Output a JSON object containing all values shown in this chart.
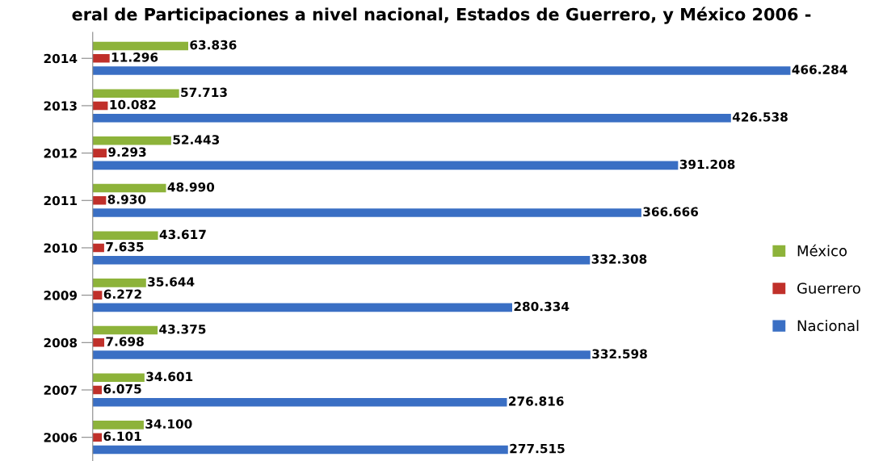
{
  "chart_data": {
    "type": "bar",
    "orientation": "horizontal",
    "title": "eral de Participaciones a nivel nacional, Estados de Guerrero, y México 2006 -",
    "categories": [
      "2014",
      "2013",
      "2012",
      "2011",
      "2010",
      "2009",
      "2008",
      "2007",
      "2006"
    ],
    "series": [
      {
        "name": "México",
        "color": "#8db33a",
        "values": [
          63836,
          57713,
          52443,
          48990,
          43617,
          35644,
          43375,
          34601,
          34100
        ],
        "value_labels": [
          "63.836",
          "57.713",
          "52.443",
          "48.990",
          "43.617",
          "35.644",
          "43.375",
          "34.601",
          "34.100"
        ]
      },
      {
        "name": "Guerrero",
        "color": "#c0302a",
        "values": [
          11296,
          10082,
          9293,
          8930,
          7635,
          6272,
          7698,
          6075,
          6101
        ],
        "value_labels": [
          "11.296",
          "10.082",
          "9.293",
          "8.930",
          "7.635",
          "6.272",
          "7.698",
          "6.075",
          "6.101"
        ]
      },
      {
        "name": "Nacional",
        "color": "#3a6fc4",
        "values": [
          466284,
          426538,
          391208,
          366666,
          332308,
          280334,
          332598,
          276816,
          277515
        ],
        "value_labels": [
          "466.284",
          "426.538",
          "391.208",
          "366.666",
          "332.308",
          "280.334",
          "332.598",
          "276.816",
          "277.515"
        ]
      }
    ],
    "tick_labels": "y",
    "legend": "right"
  }
}
